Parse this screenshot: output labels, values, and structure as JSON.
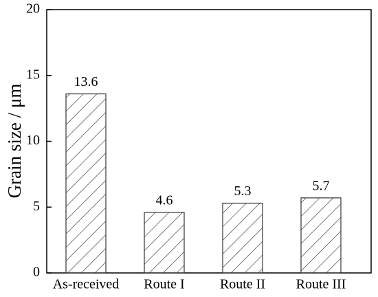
{
  "chart_data": {
    "type": "bar",
    "y_label": "Grain size / μm",
    "categories": [
      "As-received",
      "Route I",
      "Route II",
      "Route III"
    ],
    "values": [
      13.6,
      4.6,
      5.3,
      5.7
    ],
    "color": "#333333",
    "ylim": [
      0,
      20
    ],
    "yticks": [
      0,
      5,
      10,
      15,
      20
    ]
  }
}
